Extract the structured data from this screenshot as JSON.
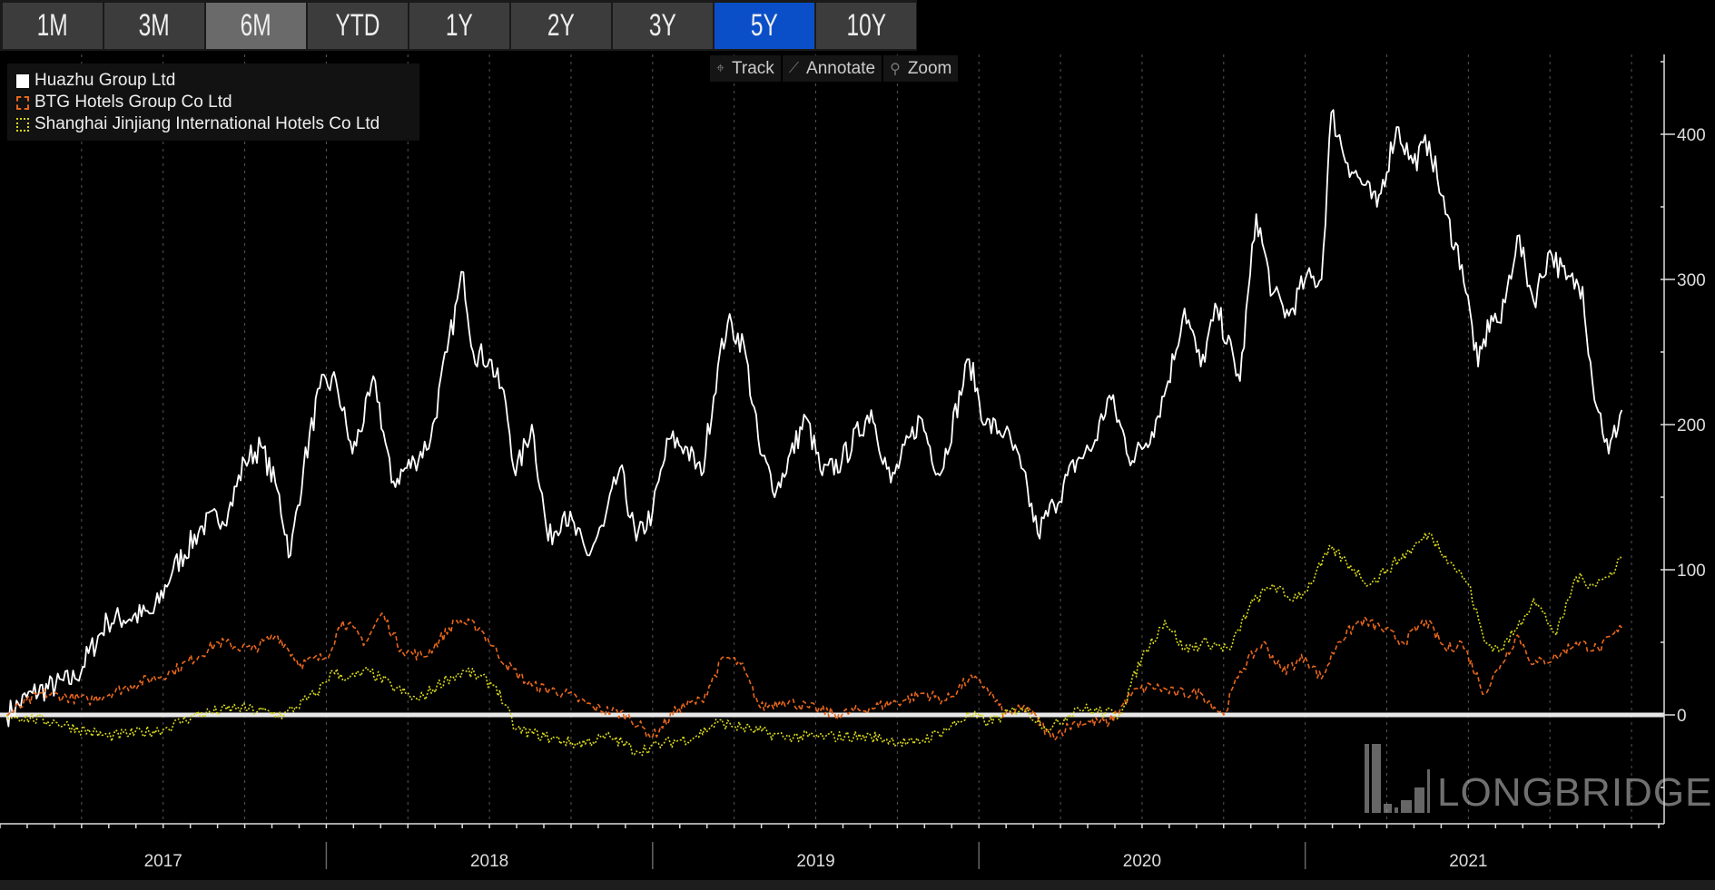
{
  "range_buttons": [
    {
      "label": "1M",
      "state": "normal"
    },
    {
      "label": "3M",
      "state": "normal"
    },
    {
      "label": "6M",
      "state": "light"
    },
    {
      "label": "YTD",
      "state": "normal"
    },
    {
      "label": "1Y",
      "state": "normal"
    },
    {
      "label": "2Y",
      "state": "normal"
    },
    {
      "label": "3Y",
      "state": "normal"
    },
    {
      "label": "5Y",
      "state": "active"
    },
    {
      "label": "10Y",
      "state": "normal"
    }
  ],
  "tools": [
    {
      "label": "Track",
      "icon": "crosshair-icon",
      "glyph": "⌖"
    },
    {
      "label": "Annotate",
      "icon": "pencil-icon",
      "glyph": "⟋"
    },
    {
      "label": "Zoom",
      "icon": "magnifier-icon",
      "glyph": "⚲"
    }
  ],
  "watermark": "LONGBRIDGE",
  "chart_data": {
    "type": "line",
    "title": "",
    "xlabel": "",
    "ylabel": "",
    "xlim": [
      2017.0,
      2022.1
    ],
    "ylim": [
      -75,
      455
    ],
    "yticks": [
      0,
      100,
      200,
      300,
      400
    ],
    "ytick_labels": [
      "0",
      "100",
      "200",
      "300",
      "400"
    ],
    "year_labels": [
      {
        "x": 2017.5,
        "label": "2017"
      },
      {
        "x": 2018.5,
        "label": "2018"
      },
      {
        "x": 2019.5,
        "label": "2019"
      },
      {
        "x": 2020.5,
        "label": "2020"
      },
      {
        "x": 2021.5,
        "label": "2021"
      }
    ],
    "grid": "vertical-dotted",
    "legend_position": "top-left",
    "series": [
      {
        "name": "Huazhu Group Ltd",
        "color": "#ffffff",
        "style": "solid",
        "points": [
          [
            2017.02,
            0
          ],
          [
            2017.1,
            15
          ],
          [
            2017.23,
            25
          ],
          [
            2017.33,
            65
          ],
          [
            2017.47,
            70
          ],
          [
            2017.53,
            100
          ],
          [
            2017.62,
            130
          ],
          [
            2017.7,
            140
          ],
          [
            2017.75,
            175
          ],
          [
            2017.8,
            185
          ],
          [
            2017.85,
            155
          ],
          [
            2017.89,
            110
          ],
          [
            2017.93,
            170
          ],
          [
            2017.98,
            225
          ],
          [
            2018.03,
            230
          ],
          [
            2018.08,
            180
          ],
          [
            2018.15,
            230
          ],
          [
            2018.2,
            160
          ],
          [
            2018.27,
            175
          ],
          [
            2018.32,
            190
          ],
          [
            2018.37,
            250
          ],
          [
            2018.42,
            305
          ],
          [
            2018.45,
            250
          ],
          [
            2018.5,
            245
          ],
          [
            2018.55,
            215
          ],
          [
            2018.58,
            165
          ],
          [
            2018.63,
            200
          ],
          [
            2018.68,
            120
          ],
          [
            2018.73,
            140
          ],
          [
            2018.8,
            110
          ],
          [
            2018.85,
            130
          ],
          [
            2018.9,
            170
          ],
          [
            2018.95,
            120
          ],
          [
            2019.0,
            140
          ],
          [
            2019.05,
            190
          ],
          [
            2019.1,
            185
          ],
          [
            2019.15,
            165
          ],
          [
            2019.2,
            240
          ],
          [
            2019.23,
            270
          ],
          [
            2019.28,
            255
          ],
          [
            2019.33,
            180
          ],
          [
            2019.38,
            155
          ],
          [
            2019.47,
            205
          ],
          [
            2019.52,
            165
          ],
          [
            2019.58,
            175
          ],
          [
            2019.67,
            210
          ],
          [
            2019.73,
            160
          ],
          [
            2019.82,
            205
          ],
          [
            2019.88,
            165
          ],
          [
            2019.97,
            245
          ],
          [
            2020.02,
            200
          ],
          [
            2020.08,
            195
          ],
          [
            2020.13,
            170
          ],
          [
            2020.18,
            125
          ],
          [
            2020.23,
            145
          ],
          [
            2020.3,
            175
          ],
          [
            2020.35,
            185
          ],
          [
            2020.4,
            220
          ],
          [
            2020.47,
            175
          ],
          [
            2020.53,
            195
          ],
          [
            2020.58,
            230
          ],
          [
            2020.63,
            280
          ],
          [
            2020.68,
            240
          ],
          [
            2020.73,
            280
          ],
          [
            2020.8,
            230
          ],
          [
            2020.85,
            345
          ],
          [
            2020.9,
            290
          ],
          [
            2020.95,
            275
          ],
          [
            2021.0,
            300
          ],
          [
            2021.05,
            300
          ],
          [
            2021.08,
            415
          ],
          [
            2021.13,
            380
          ],
          [
            2021.18,
            365
          ],
          [
            2021.22,
            350
          ],
          [
            2021.28,
            405
          ],
          [
            2021.33,
            380
          ],
          [
            2021.38,
            395
          ],
          [
            2021.43,
            345
          ],
          [
            2021.48,
            310
          ],
          [
            2021.53,
            240
          ],
          [
            2021.57,
            275
          ],
          [
            2021.6,
            270
          ],
          [
            2021.65,
            330
          ],
          [
            2021.7,
            285
          ],
          [
            2021.75,
            320
          ],
          [
            2021.8,
            300
          ],
          [
            2021.85,
            295
          ],
          [
            2021.88,
            230
          ],
          [
            2021.93,
            180
          ],
          [
            2021.97,
            210
          ]
        ]
      },
      {
        "name": "BTG Hotels Group Co Ltd",
        "color": "#e8661c",
        "style": "dashed",
        "points": [
          [
            2017.02,
            0
          ],
          [
            2017.13,
            15
          ],
          [
            2017.27,
            10
          ],
          [
            2017.4,
            20
          ],
          [
            2017.53,
            30
          ],
          [
            2017.67,
            50
          ],
          [
            2017.77,
            45
          ],
          [
            2017.85,
            55
          ],
          [
            2017.92,
            35
          ],
          [
            2018.0,
            40
          ],
          [
            2018.05,
            65
          ],
          [
            2018.12,
            50
          ],
          [
            2018.17,
            70
          ],
          [
            2018.23,
            45
          ],
          [
            2018.3,
            40
          ],
          [
            2018.4,
            65
          ],
          [
            2018.47,
            60
          ],
          [
            2018.55,
            35
          ],
          [
            2018.63,
            20
          ],
          [
            2018.73,
            15
          ],
          [
            2018.82,
            5
          ],
          [
            2018.92,
            0
          ],
          [
            2019.0,
            -15
          ],
          [
            2019.08,
            5
          ],
          [
            2019.15,
            10
          ],
          [
            2019.22,
            40
          ],
          [
            2019.27,
            35
          ],
          [
            2019.33,
            5
          ],
          [
            2019.4,
            10
          ],
          [
            2019.48,
            5
          ],
          [
            2019.57,
            0
          ],
          [
            2019.67,
            5
          ],
          [
            2019.77,
            10
          ],
          [
            2019.83,
            15
          ],
          [
            2019.9,
            10
          ],
          [
            2019.97,
            25
          ],
          [
            2020.02,
            20
          ],
          [
            2020.08,
            0
          ],
          [
            2020.15,
            5
          ],
          [
            2020.22,
            -15
          ],
          [
            2020.3,
            -5
          ],
          [
            2020.4,
            -5
          ],
          [
            2020.47,
            15
          ],
          [
            2020.53,
            20
          ],
          [
            2020.6,
            15
          ],
          [
            2020.68,
            15
          ],
          [
            2020.75,
            0
          ],
          [
            2020.8,
            30
          ],
          [
            2020.87,
            50
          ],
          [
            2020.93,
            30
          ],
          [
            2021.0,
            40
          ],
          [
            2021.05,
            25
          ],
          [
            2021.1,
            50
          ],
          [
            2021.17,
            65
          ],
          [
            2021.23,
            60
          ],
          [
            2021.3,
            50
          ],
          [
            2021.37,
            65
          ],
          [
            2021.43,
            45
          ],
          [
            2021.48,
            50
          ],
          [
            2021.55,
            15
          ],
          [
            2021.6,
            35
          ],
          [
            2021.65,
            55
          ],
          [
            2021.7,
            35
          ],
          [
            2021.77,
            40
          ],
          [
            2021.83,
            50
          ],
          [
            2021.9,
            45
          ],
          [
            2021.97,
            60
          ]
        ]
      },
      {
        "name": "Shanghai Jinjiang International Hotels Co Ltd",
        "color": "#d8d81a",
        "style": "dotted",
        "points": [
          [
            2017.02,
            0
          ],
          [
            2017.17,
            -5
          ],
          [
            2017.33,
            -15
          ],
          [
            2017.5,
            -10
          ],
          [
            2017.6,
            0
          ],
          [
            2017.73,
            5
          ],
          [
            2017.87,
            0
          ],
          [
            2017.97,
            15
          ],
          [
            2018.02,
            30
          ],
          [
            2018.07,
            25
          ],
          [
            2018.13,
            30
          ],
          [
            2018.2,
            20
          ],
          [
            2018.28,
            10
          ],
          [
            2018.37,
            25
          ],
          [
            2018.43,
            30
          ],
          [
            2018.52,
            20
          ],
          [
            2018.58,
            -10
          ],
          [
            2018.67,
            -15
          ],
          [
            2018.77,
            -20
          ],
          [
            2018.87,
            -15
          ],
          [
            2018.95,
            -25
          ],
          [
            2019.03,
            -20
          ],
          [
            2019.13,
            -15
          ],
          [
            2019.2,
            -5
          ],
          [
            2019.3,
            -10
          ],
          [
            2019.4,
            -15
          ],
          [
            2019.53,
            -15
          ],
          [
            2019.67,
            -15
          ],
          [
            2019.8,
            -20
          ],
          [
            2019.9,
            -10
          ],
          [
            2019.97,
            0
          ],
          [
            2020.03,
            -5
          ],
          [
            2020.13,
            5
          ],
          [
            2020.22,
            -10
          ],
          [
            2020.3,
            5
          ],
          [
            2020.43,
            0
          ],
          [
            2020.5,
            40
          ],
          [
            2020.57,
            65
          ],
          [
            2020.63,
            45
          ],
          [
            2020.7,
            50
          ],
          [
            2020.77,
            45
          ],
          [
            2020.83,
            75
          ],
          [
            2020.9,
            90
          ],
          [
            2020.95,
            80
          ],
          [
            2021.0,
            85
          ],
          [
            2021.08,
            115
          ],
          [
            2021.15,
            100
          ],
          [
            2021.2,
            90
          ],
          [
            2021.25,
            100
          ],
          [
            2021.33,
            115
          ],
          [
            2021.38,
            125
          ],
          [
            2021.43,
            110
          ],
          [
            2021.5,
            90
          ],
          [
            2021.55,
            50
          ],
          [
            2021.6,
            45
          ],
          [
            2021.65,
            60
          ],
          [
            2021.7,
            80
          ],
          [
            2021.77,
            55
          ],
          [
            2021.83,
            95
          ],
          [
            2021.88,
            90
          ],
          [
            2021.93,
            95
          ],
          [
            2021.97,
            110
          ]
        ]
      }
    ]
  }
}
